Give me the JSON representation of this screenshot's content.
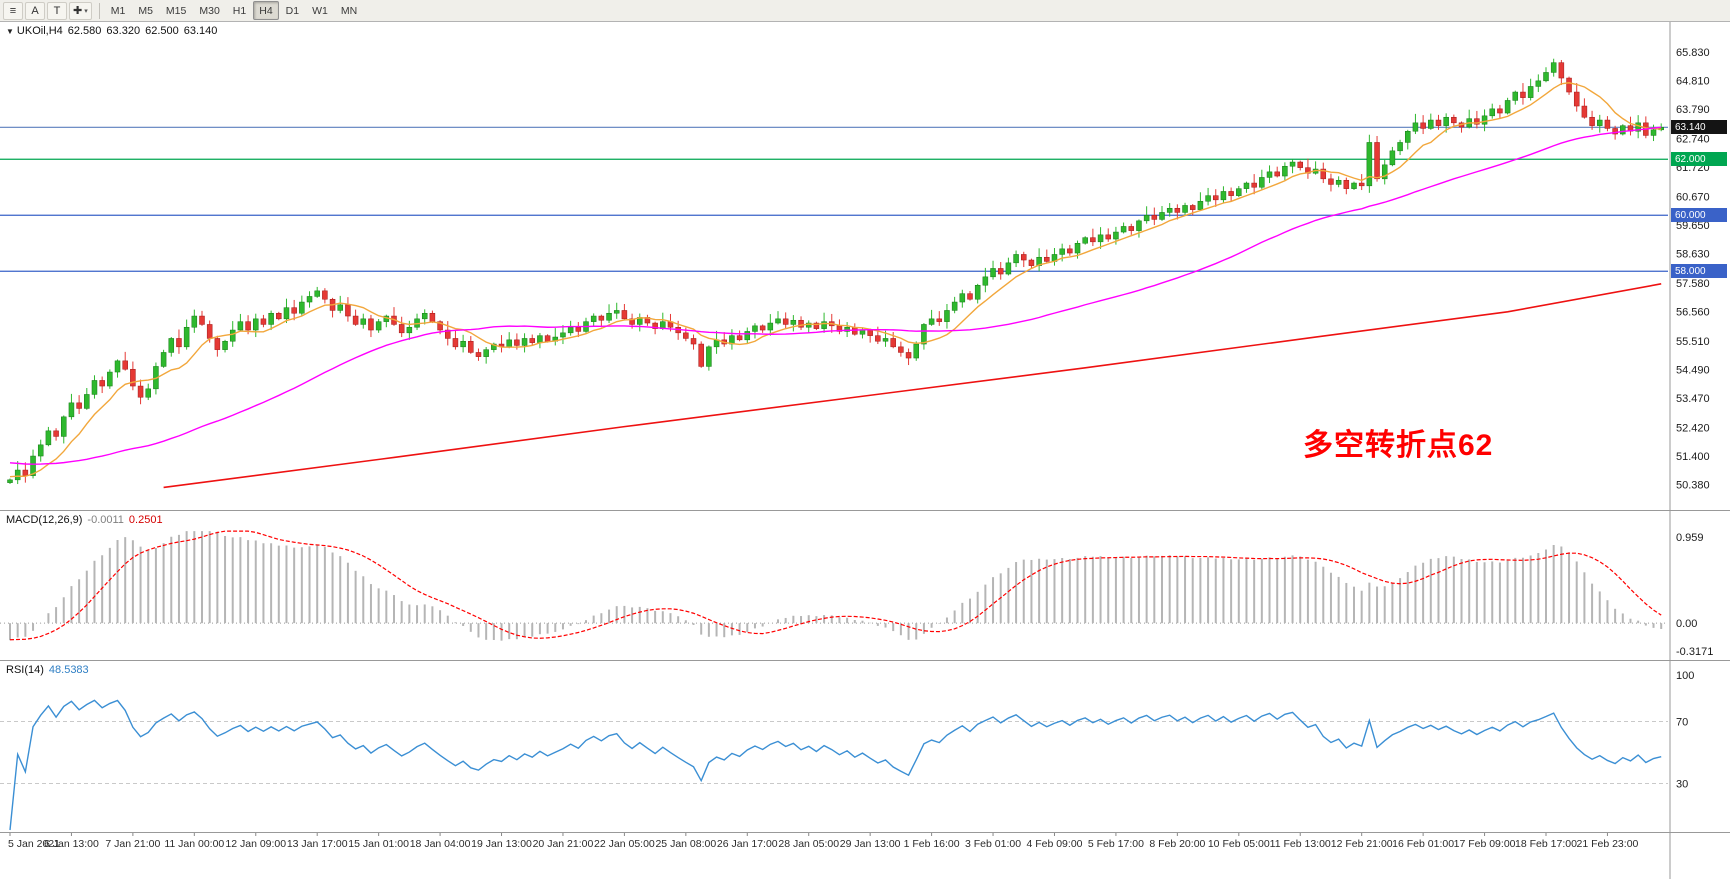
{
  "toolbar": {
    "icons": {
      "menu": "≡",
      "cursor": "✚",
      "dropdown": "▾"
    },
    "buttons": {
      "a_label": "A",
      "t_label": "T"
    },
    "timeframes": [
      "M1",
      "M5",
      "M15",
      "M30",
      "H1",
      "H4",
      "D1",
      "W1",
      "MN"
    ],
    "selected_timeframe": "H4"
  },
  "main_chart": {
    "symbol_label": "UKOil,H4",
    "ohlc": {
      "open": "62.580",
      "high": "63.320",
      "low": "62.500",
      "close": "63.140"
    },
    "annotation": {
      "text": "多空转折点62",
      "color": "#ff0000"
    },
    "price_axis_labels": [
      "65.830",
      "64.810",
      "63.790",
      "62.740",
      "61.720",
      "60.670",
      "59.650",
      "58.630",
      "57.580",
      "56.560",
      "55.510",
      "54.490",
      "53.470",
      "52.420",
      "51.400",
      "50.380"
    ],
    "price_badges": [
      {
        "value": "63.140",
        "bg": "#141414"
      },
      {
        "value": "62.000",
        "bg": "#00a651"
      },
      {
        "value": "60.000",
        "bg": "#3a62c8"
      },
      {
        "value": "58.000",
        "bg": "#3a62c8"
      }
    ]
  },
  "macd_panel": {
    "label": "MACD(12,26,9)",
    "main_value": "-0.0011",
    "signal_value": "0.2501",
    "axis_labels": [
      "0.959",
      "0.00",
      "-0.3171"
    ]
  },
  "rsi_panel": {
    "label": "RSI(14)",
    "value": "48.5383",
    "axis_labels": [
      "100",
      "70",
      "30"
    ],
    "levels": [
      70,
      30
    ]
  },
  "time_axis": {
    "labels": [
      "5 Jan 2021",
      "6 Jan 13:00",
      "7 Jan 21:00",
      "11 Jan 00:00",
      "12 Jan 09:00",
      "13 Jan 17:00",
      "15 Jan 01:00",
      "18 Jan 04:00",
      "19 Jan 13:00",
      "20 Jan 21:00",
      "22 Jan 05:00",
      "25 Jan 08:00",
      "26 Jan 17:00",
      "28 Jan 05:00",
      "29 Jan 13:00",
      "1 Feb 16:00",
      "3 Feb 01:00",
      "4 Feb 09:00",
      "5 Feb 17:00",
      "8 Feb 20:00",
      "10 Feb 05:00",
      "11 Feb 13:00",
      "12 Feb 21:00",
      "16 Feb 01:00",
      "17 Feb 09:00",
      "18 Feb 17:00",
      "21 Feb 23:00"
    ]
  },
  "chart_data": {
    "type": "candlestick",
    "symbol": "UKOil",
    "timeframe": "H4",
    "price_range": [
      50.38,
      65.83
    ],
    "bars": 216,
    "time_labels_every_n_bars": 8,
    "first_open": 50.45,
    "closes": [
      50.55,
      50.9,
      50.7,
      51.4,
      51.8,
      52.3,
      52.1,
      52.8,
      53.3,
      53.1,
      53.6,
      54.1,
      53.9,
      54.4,
      54.8,
      54.5,
      53.9,
      53.5,
      53.8,
      54.6,
      55.1,
      55.6,
      55.3,
      56.0,
      56.4,
      56.1,
      55.6,
      55.2,
      55.5,
      55.9,
      56.2,
      55.9,
      56.3,
      56.1,
      56.5,
      56.3,
      56.7,
      56.5,
      56.9,
      57.1,
      57.3,
      57.0,
      56.6,
      56.8,
      56.4,
      56.1,
      56.3,
      55.9,
      56.2,
      56.4,
      56.1,
      55.8,
      56.0,
      56.3,
      56.5,
      56.2,
      55.9,
      55.6,
      55.3,
      55.5,
      55.1,
      54.95,
      55.2,
      55.4,
      55.3,
      55.55,
      55.35,
      55.6,
      55.45,
      55.7,
      55.5,
      55.65,
      55.8,
      56.0,
      55.85,
      56.2,
      56.4,
      56.25,
      56.5,
      56.6,
      56.3,
      56.1,
      56.35,
      56.15,
      55.95,
      56.2,
      56.0,
      55.8,
      55.6,
      55.4,
      54.6,
      55.3,
      55.55,
      55.4,
      55.7,
      55.55,
      55.85,
      56.05,
      55.9,
      56.15,
      56.3,
      56.1,
      56.25,
      56.0,
      56.15,
      55.95,
      56.2,
      56.05,
      55.85,
      56.0,
      55.75,
      55.9,
      55.7,
      55.5,
      55.6,
      55.3,
      55.1,
      54.9,
      55.4,
      56.1,
      56.3,
      56.2,
      56.6,
      56.9,
      57.2,
      57.0,
      57.5,
      57.8,
      58.1,
      57.9,
      58.3,
      58.6,
      58.4,
      58.2,
      58.5,
      58.35,
      58.6,
      58.8,
      58.65,
      59.0,
      59.2,
      59.05,
      59.3,
      59.15,
      59.4,
      59.6,
      59.45,
      59.8,
      60.0,
      59.85,
      60.1,
      60.25,
      60.1,
      60.35,
      60.2,
      60.5,
      60.7,
      60.55,
      60.85,
      60.7,
      60.95,
      61.15,
      61.0,
      61.35,
      61.55,
      61.4,
      61.75,
      61.9,
      61.7,
      61.5,
      61.65,
      61.3,
      61.1,
      61.25,
      60.95,
      61.15,
      61.05,
      62.6,
      61.3,
      61.8,
      62.3,
      62.6,
      63.0,
      63.3,
      63.1,
      63.4,
      63.2,
      63.5,
      63.3,
      63.15,
      63.45,
      63.25,
      63.55,
      63.8,
      63.65,
      64.1,
      64.4,
      64.2,
      64.6,
      64.8,
      65.1,
      65.45,
      64.9,
      64.4,
      63.9,
      63.5,
      63.2,
      63.4,
      63.1,
      62.9,
      63.2,
      63.0,
      63.3,
      62.85,
      63.05,
      63.14
    ],
    "ma_prehistory": {
      "start": 51.9,
      "end": 50.6,
      "count": 50
    },
    "moving_averages": [
      {
        "name": "fast",
        "period": 8,
        "color": "#f2a73c"
      },
      {
        "name": "medium",
        "period": 45,
        "color": "#ff00ff"
      }
    ],
    "slow_ma_anchors": [
      [
        20,
        50.28
      ],
      [
        50,
        51.35
      ],
      [
        80,
        52.45
      ],
      [
        110,
        53.5
      ],
      [
        140,
        54.55
      ],
      [
        170,
        55.65
      ],
      [
        195,
        56.55
      ],
      [
        215,
        57.55
      ]
    ],
    "slow_ma_color": "#ee1111",
    "hlines": [
      {
        "value": 63.14,
        "color": "#5b7fbe"
      },
      {
        "value": 62.0,
        "color": "#00a651"
      },
      {
        "value": 60.0,
        "color": "#3a62c8"
      },
      {
        "value": 58.0,
        "color": "#3a62c8"
      }
    ],
    "colors": {
      "up": "#2eb82e",
      "up_border": "#157a15",
      "down": "#e53935",
      "down_border": "#a01818",
      "macd_hist": "#b5b5b5",
      "macd_signal": "#ff0000",
      "rsi_line": "#3b8fd4",
      "level_dash": "#c9c9c9"
    },
    "indicators": {
      "macd": {
        "fast": 12,
        "slow": 26,
        "signal": 9,
        "range": [
          -0.3171,
          0.959
        ],
        "last_main": -0.0011,
        "last_signal": 0.2501
      },
      "rsi": {
        "period": 14,
        "levels": [
          70,
          30
        ],
        "last": 48.5383
      }
    }
  }
}
